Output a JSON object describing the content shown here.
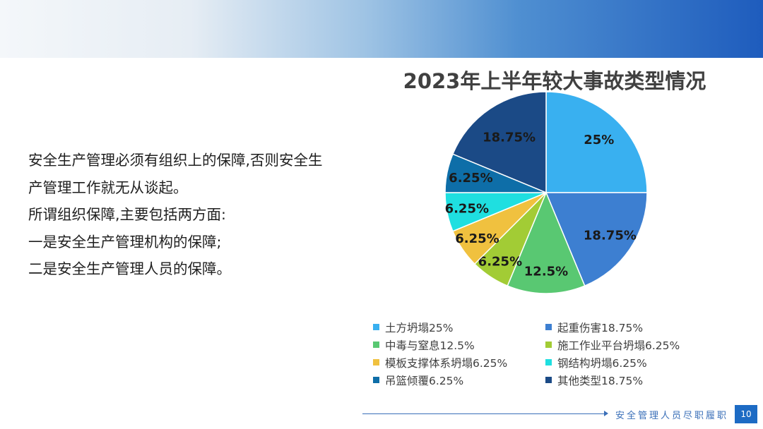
{
  "slide": {
    "paragraphs": [
      "安全生产管理必须有组织上的保障,否则安全生",
      "产管理工作就无从谈起。",
      "所谓组织保障,主要包括两方面:",
      "一是安全生产管理机构的保障;",
      "二是安全生产管理人员的保障。"
    ],
    "footer_text": "安全管理人员尽职履职",
    "page_number": "10"
  },
  "chart_data": {
    "type": "pie",
    "title": "2023年上半年较大事故类型情况",
    "legend_position": "bottom",
    "slices": [
      {
        "name": "土方坍塌",
        "value": 25,
        "label": "25%",
        "legend": "土方坍塌25%",
        "color": "#39b0f0"
      },
      {
        "name": "起重伤害",
        "value": 18.75,
        "label": "18.75%",
        "legend": "起重伤害18.75%",
        "color": "#3d7fd1"
      },
      {
        "name": "中毒与窒息",
        "value": 12.5,
        "label": "12.5%",
        "legend": "中毒与窒息12.5%",
        "color": "#59c872"
      },
      {
        "name": "施工作业平台坍塌",
        "value": 6.25,
        "label": "6.25%",
        "legend": "施工作业平台坍塌6.25%",
        "color": "#a2cc35"
      },
      {
        "name": "模板支撑体系坍塌",
        "value": 6.25,
        "label": "6.25%",
        "legend": "模板支撑体系坍塌6.25%",
        "color": "#f0c13f"
      },
      {
        "name": "钢结构坍塌",
        "value": 6.25,
        "label": "6.25%",
        "legend": "钢结构坍塌6.25%",
        "color": "#1fdfe0"
      },
      {
        "name": "吊篮倾覆",
        "value": 6.25,
        "label": "6.25%",
        "legend": "吊篮倾覆6.25%",
        "color": "#0e6ea8"
      },
      {
        "name": "其他类型",
        "value": 18.75,
        "label": "18.75%",
        "legend": "其他类型18.75%",
        "color": "#1b4a86"
      }
    ]
  }
}
